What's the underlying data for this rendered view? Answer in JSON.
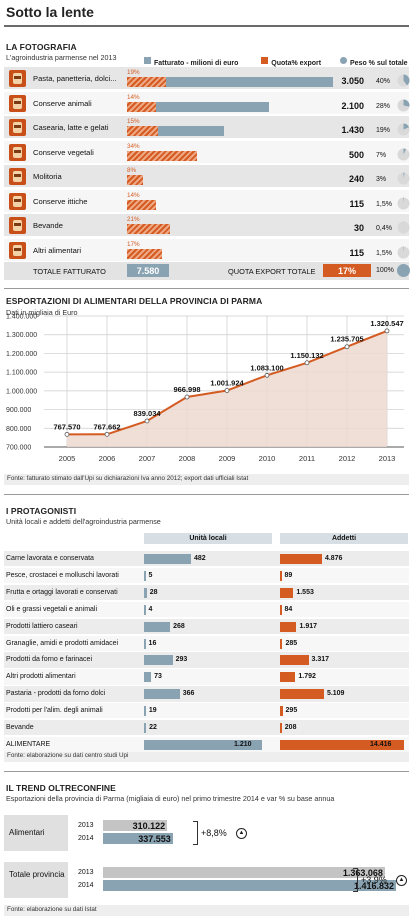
{
  "header": {
    "title": "Sotto la lente"
  },
  "fotografia": {
    "title": "LA FOTOGRAFIA",
    "subtitle": "L'agroindustria parmense nel 2013",
    "legend": {
      "fatturato": "Fatturato - milioni di euro",
      "quota": "Quota% export",
      "peso": "Peso % sul totale"
    },
    "total_label": "TOTALE FATTURATO",
    "total_value": "7.580",
    "export_label": "QUOTA EXPORT TOTALE",
    "export_value": "17%",
    "total_peso": "100%",
    "colors": {
      "grey": "#89a3b2",
      "orange": "#d45b22"
    }
  },
  "chart_data": [
    {
      "type": "bar",
      "categories": [
        "Pasta, panetteria, dolci...",
        "Conserve animali",
        "Casearia, latte e gelati",
        "Conserve vegetali",
        "Molitoria",
        "Conserve ittiche",
        "Bevande",
        "Altri alimentari"
      ],
      "icons": [
        "pasta-icon",
        "conserve-animali-icon",
        "latte-icon",
        "conserve-vegetali-icon",
        "molitoria-icon",
        "conserve-ittiche-icon",
        "bevande-icon",
        "altri-alimentari-icon"
      ],
      "series": [
        {
          "name": "Fatturato - milioni di euro",
          "values": [
            3050,
            2100,
            1430,
            500,
            240,
            115,
            30,
            115
          ],
          "labels": [
            "3.050",
            "2.100",
            "1.430",
            "500",
            "240",
            "115",
            "30",
            "115"
          ]
        },
        {
          "name": "Quota% export",
          "values": [
            19,
            14,
            15,
            34,
            8,
            14,
            21,
            17
          ],
          "labels": [
            "19%",
            "14%",
            "15%",
            "34%",
            "8%",
            "14%",
            "21%",
            "17%"
          ]
        },
        {
          "name": "Peso % sul totale",
          "values": [
            40,
            28,
            19,
            7,
            3,
            1.5,
            0.4,
            1.5
          ],
          "labels": [
            "40%",
            "28%",
            "19%",
            "7%",
            "3%",
            "1,5%",
            "0,4%",
            "1,5%"
          ]
        }
      ]
    },
    {
      "type": "area",
      "title": "ESPORTAZIONI DI ALIMENTARI DELLA PROVINCIA DI PARMA",
      "subtitle": "Dati in migliaia di Euro",
      "x": [
        "2005",
        "2006",
        "2007",
        "2008",
        "2009",
        "2010",
        "2011",
        "2012",
        "2013"
      ],
      "values": [
        767570,
        767662,
        839034,
        966998,
        1001924,
        1083100,
        1150132,
        1235705,
        1320547
      ],
      "labels": [
        "767.570",
        "767.662",
        "839.034",
        "966.998",
        "1.001.924",
        "1.083.100",
        "1.150.132",
        "1.235.705",
        "1.320.547"
      ],
      "yticks": [
        "1.400.000",
        "1.300.000",
        "1.200.000",
        "1.100.000",
        "1.000.000",
        "900.000",
        "800.000",
        "700.000"
      ],
      "ylim": [
        700000,
        1400000
      ],
      "grid": true,
      "footnote": "Fonte: fatturato stimato dall'Upi su dichiarazioni Iva anno 2012; export dati ufficiali Istat"
    },
    {
      "type": "bar",
      "title": "I PROTAGONISTI",
      "subtitle": "Unità locali e addetti dell'agroindustria parmense",
      "categories": [
        "Carne lavorata e conservata",
        "Pesce, crostacei e molluschi lavorati",
        "Frutta e ortaggi lavorati e conservati",
        "Oli e grassi vegetali e animali",
        "Prodotti lattiero caseari",
        "Granaglie, amidi e prodotti amidacei",
        "Prodotti da forno e farinacei",
        "Altri prodotti alimentari",
        "Pastaria - prodotti da forno dolci",
        "Prodotti per l'alim. degli animali",
        "Bevande",
        "ALIMENTARE"
      ],
      "series": [
        {
          "name": "Unità locali",
          "values": [
            482,
            5,
            28,
            4,
            268,
            16,
            293,
            73,
            366,
            19,
            22,
            1210
          ],
          "labels": [
            "482",
            "5",
            "28",
            "4",
            "268",
            "16",
            "293",
            "73",
            "366",
            "19",
            "22",
            "1.210"
          ]
        },
        {
          "name": "Addetti",
          "values": [
            4876,
            89,
            1553,
            84,
            1917,
            285,
            3317,
            1792,
            5109,
            295,
            208,
            14416
          ],
          "labels": [
            "4.876",
            "89",
            "1.553",
            "84",
            "1.917",
            "285",
            "3.317",
            "1.792",
            "5.109",
            "295",
            "208",
            "14.416"
          ]
        }
      ],
      "footnote": "Fonte: elaborazione su dati centro studi Upi"
    },
    {
      "type": "bar",
      "title": "IL TREND OLTRECONFINE",
      "subtitle": "Esportazioni della provincia di Parma (migliaia di euro) nel primo trimestre 2014 e var % su base annua",
      "groups": [
        {
          "name": "Alimentari",
          "years": [
            "2013",
            "2014"
          ],
          "values": [
            310122,
            337553
          ],
          "labels": [
            "310.122",
            "337.553"
          ],
          "change": "+8,8%"
        },
        {
          "name": "Totale provincia",
          "years": [
            "2013",
            "2014"
          ],
          "values": [
            1363068,
            1416832
          ],
          "labels": [
            "1.363.068",
            "1.416.832"
          ],
          "change": "+3,9%"
        }
      ],
      "footnote": "Fonte: elaborazione su dati Istat"
    }
  ]
}
